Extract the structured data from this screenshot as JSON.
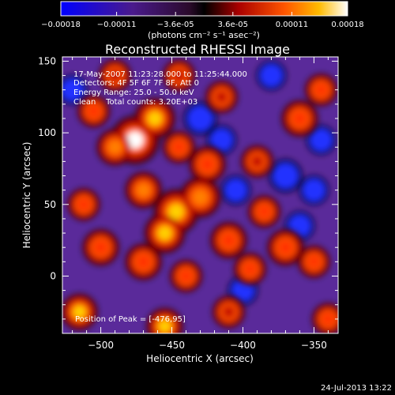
{
  "chart_data": {
    "type": "heatmap",
    "title": "Reconstructed RHESSI Image",
    "xlabel": "Heliocentric X (arcsec)",
    "ylabel": "Heliocentric Y (arcsec)",
    "xlim": [
      -527,
      -333
    ],
    "ylim": [
      -40,
      153
    ],
    "x_ticks": [
      -500,
      -450,
      -400,
      -350
    ],
    "y_ticks": [
      0,
      50,
      100,
      150
    ],
    "annotations": [
      "17-May-2007 11:23:28.000 to 11:25:44.000",
      "Detectors: 4F 5F 6F 7F 8F, Att 0",
      "Energy Range: 25.0 - 50.0 keV",
      "Clean    Total counts: 3.20E+03"
    ],
    "peak_label": "Position of Peak = [-476,95]",
    "colorbar": {
      "ticks": [
        "-0.00018",
        "-0.00011",
        "-3.6e-05",
        "3.6e-05",
        "0.00011",
        "0.00018"
      ],
      "units": "(photons cm⁻² s⁻¹ asec⁻²)",
      "range": [
        -0.00018,
        0.00018
      ]
    },
    "hotspots": [
      {
        "x": -476,
        "y": 95,
        "value": 1.0,
        "r": 12
      },
      {
        "x": -462,
        "y": 110,
        "value": 0.85,
        "r": 10
      },
      {
        "x": -490,
        "y": 90,
        "value": 0.7,
        "r": 9
      },
      {
        "x": -447,
        "y": 45,
        "value": 0.9,
        "r": 11
      },
      {
        "x": -455,
        "y": 30,
        "value": 0.8,
        "r": 10
      },
      {
        "x": -430,
        "y": 55,
        "value": 0.75,
        "r": 10
      },
      {
        "x": -470,
        "y": 60,
        "value": 0.65,
        "r": 9
      },
      {
        "x": -425,
        "y": 78,
        "value": 0.6,
        "r": 9
      },
      {
        "x": -445,
        "y": 90,
        "value": 0.55,
        "r": 8
      },
      {
        "x": -512,
        "y": 50,
        "value": 0.55,
        "r": 8
      },
      {
        "x": -500,
        "y": 20,
        "value": 0.55,
        "r": 9
      },
      {
        "x": -505,
        "y": 115,
        "value": 0.5,
        "r": 8
      },
      {
        "x": -470,
        "y": 10,
        "value": 0.55,
        "r": 9
      },
      {
        "x": -440,
        "y": 0,
        "value": 0.5,
        "r": 8
      },
      {
        "x": -410,
        "y": 25,
        "value": 0.6,
        "r": 9
      },
      {
        "x": -395,
        "y": 5,
        "value": 0.55,
        "r": 8
      },
      {
        "x": -370,
        "y": 20,
        "value": 0.55,
        "r": 9
      },
      {
        "x": -350,
        "y": 10,
        "value": 0.5,
        "r": 8
      },
      {
        "x": -360,
        "y": 110,
        "value": 0.6,
        "r": 9
      },
      {
        "x": -345,
        "y": 130,
        "value": 0.5,
        "r": 8
      },
      {
        "x": -390,
        "y": 80,
        "value": 0.45,
        "r": 8
      },
      {
        "x": -385,
        "y": 45,
        "value": 0.55,
        "r": 8
      },
      {
        "x": -515,
        "y": -25,
        "value": 0.85,
        "r": 9
      },
      {
        "x": -455,
        "y": -35,
        "value": 0.8,
        "r": 9
      },
      {
        "x": -340,
        "y": -30,
        "value": 0.55,
        "r": 8
      },
      {
        "x": -410,
        "y": -25,
        "value": 0.45,
        "r": 8
      },
      {
        "x": -490,
        "y": 140,
        "value": 0.4,
        "r": 8
      },
      {
        "x": -445,
        "y": 140,
        "value": 0.4,
        "r": 8
      },
      {
        "x": -415,
        "y": 125,
        "value": 0.45,
        "r": 8
      }
    ],
    "coldspots": [
      {
        "x": -430,
        "y": 110,
        "value": -0.6,
        "r": 9
      },
      {
        "x": -415,
        "y": 95,
        "value": -0.55,
        "r": 8
      },
      {
        "x": -370,
        "y": 70,
        "value": -0.65,
        "r": 9
      },
      {
        "x": -350,
        "y": 60,
        "value": -0.6,
        "r": 8
      },
      {
        "x": -405,
        "y": 60,
        "value": -0.5,
        "r": 8
      },
      {
        "x": -400,
        "y": -10,
        "value": -0.55,
        "r": 8
      },
      {
        "x": -380,
        "y": 140,
        "value": -0.5,
        "r": 8
      },
      {
        "x": -520,
        "y": 130,
        "value": -0.45,
        "r": 8
      },
      {
        "x": -360,
        "y": 35,
        "value": -0.5,
        "r": 8
      },
      {
        "x": -345,
        "y": 95,
        "value": -0.45,
        "r": 8
      }
    ]
  },
  "footer": {
    "timestamp": "24-Jul-2013 13:22"
  },
  "colors": {
    "axis": "#ffffff",
    "background": "#000000"
  }
}
